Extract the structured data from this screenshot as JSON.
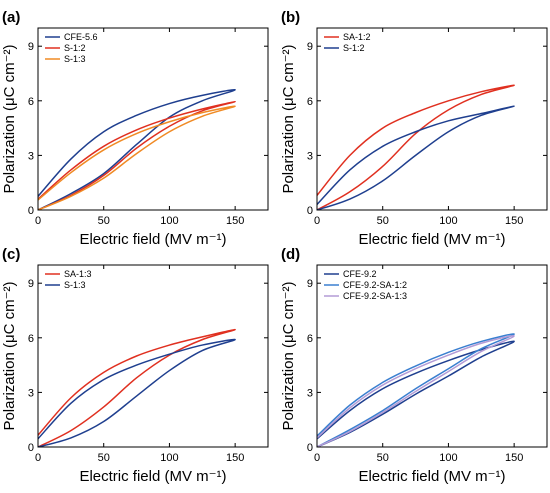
{
  "chart_data": [
    {
      "panel_label": "(a)",
      "type": "line",
      "xlabel": "Electric field (MV m⁻¹)",
      "ylabel": "Polarization (μC cm⁻²)",
      "xlim": [
        0,
        175
      ],
      "ylim": [
        0,
        10
      ],
      "xticks": [
        0,
        50,
        100,
        150
      ],
      "yticks": [
        0,
        3,
        6,
        9
      ],
      "legend_position": "top-left",
      "series": [
        {
          "name": "CFE-5.6",
          "color": "#1f3f8f",
          "x_max": 150,
          "p_max": 6.6,
          "p_rem": 0.75,
          "up": [
            [
              0,
              0
            ],
            [
              25,
              0.9
            ],
            [
              50,
              2.0
            ],
            [
              75,
              3.6
            ],
            [
              100,
              5.1
            ],
            [
              125,
              6.0
            ],
            [
              150,
              6.6
            ]
          ],
          "down": [
            [
              150,
              6.6
            ],
            [
              125,
              6.3
            ],
            [
              100,
              5.85
            ],
            [
              75,
              5.2
            ],
            [
              50,
              4.3
            ],
            [
              25,
              2.8
            ],
            [
              0,
              0.75
            ]
          ]
        },
        {
          "name": "S-1:2",
          "color": "#e03020",
          "x_max": 150,
          "p_max": 5.95,
          "p_rem": 0.6,
          "up": [
            [
              0,
              0
            ],
            [
              25,
              0.8
            ],
            [
              50,
              1.9
            ],
            [
              75,
              3.4
            ],
            [
              100,
              4.6
            ],
            [
              125,
              5.45
            ],
            [
              150,
              5.95
            ]
          ],
          "down": [
            [
              150,
              5.95
            ],
            [
              125,
              5.55
            ],
            [
              100,
              5.05
            ],
            [
              75,
              4.4
            ],
            [
              50,
              3.5
            ],
            [
              25,
              2.2
            ],
            [
              0,
              0.6
            ]
          ]
        },
        {
          "name": "S-1:3",
          "color": "#f08a24",
          "x_max": 150,
          "p_max": 5.7,
          "p_rem": 0.55,
          "up": [
            [
              0,
              0
            ],
            [
              25,
              0.75
            ],
            [
              50,
              1.75
            ],
            [
              75,
              3.1
            ],
            [
              100,
              4.3
            ],
            [
              125,
              5.15
            ],
            [
              150,
              5.7
            ]
          ],
          "down": [
            [
              150,
              5.7
            ],
            [
              125,
              5.35
            ],
            [
              100,
              4.85
            ],
            [
              75,
              4.2
            ],
            [
              50,
              3.3
            ],
            [
              25,
              2.05
            ],
            [
              0,
              0.55
            ]
          ]
        }
      ]
    },
    {
      "panel_label": "(b)",
      "type": "line",
      "xlabel": "Electric field (MV m⁻¹)",
      "ylabel": "Polarization (μC cm⁻²)",
      "xlim": [
        0,
        175
      ],
      "ylim": [
        0,
        10
      ],
      "xticks": [
        0,
        50,
        100,
        150
      ],
      "yticks": [
        0,
        3,
        6,
        9
      ],
      "legend_position": "top-left",
      "series": [
        {
          "name": "SA-1:2",
          "color": "#e03020",
          "x_max": 150,
          "p_max": 6.85,
          "p_rem": 0.8,
          "up": [
            [
              0,
              0
            ],
            [
              25,
              1.0
            ],
            [
              50,
              2.4
            ],
            [
              75,
              4.2
            ],
            [
              100,
              5.5
            ],
            [
              125,
              6.35
            ],
            [
              150,
              6.85
            ]
          ],
          "down": [
            [
              150,
              6.85
            ],
            [
              125,
              6.5
            ],
            [
              100,
              6.0
            ],
            [
              75,
              5.35
            ],
            [
              50,
              4.5
            ],
            [
              25,
              3.0
            ],
            [
              0,
              0.8
            ]
          ]
        },
        {
          "name": "S-1:2",
          "color": "#1f3f8f",
          "x_max": 150,
          "p_max": 5.7,
          "p_rem": 0.3,
          "up": [
            [
              0,
              0
            ],
            [
              25,
              0.6
            ],
            [
              50,
              1.6
            ],
            [
              75,
              3.0
            ],
            [
              100,
              4.3
            ],
            [
              125,
              5.2
            ],
            [
              150,
              5.7
            ]
          ],
          "down": [
            [
              150,
              5.7
            ],
            [
              125,
              5.3
            ],
            [
              100,
              4.9
            ],
            [
              75,
              4.3
            ],
            [
              50,
              3.5
            ],
            [
              25,
              2.2
            ],
            [
              0,
              0.3
            ]
          ]
        }
      ]
    },
    {
      "panel_label": "(c)",
      "type": "line",
      "xlabel": "Electric field (MV m⁻¹)",
      "ylabel": "Polarization (μC cm⁻²)",
      "xlim": [
        0,
        175
      ],
      "ylim": [
        0,
        10
      ],
      "xticks": [
        0,
        50,
        100,
        150
      ],
      "yticks": [
        0,
        3,
        6,
        9
      ],
      "legend_position": "top-left",
      "series": [
        {
          "name": "SA-1:3",
          "color": "#e03020",
          "x_max": 150,
          "p_max": 6.45,
          "p_rem": 0.65,
          "up": [
            [
              0,
              0
            ],
            [
              25,
              0.9
            ],
            [
              50,
              2.2
            ],
            [
              75,
              3.8
            ],
            [
              100,
              5.05
            ],
            [
              125,
              5.9
            ],
            [
              150,
              6.45
            ]
          ],
          "down": [
            [
              150,
              6.45
            ],
            [
              125,
              6.05
            ],
            [
              100,
              5.6
            ],
            [
              75,
              5.0
            ],
            [
              50,
              4.1
            ],
            [
              25,
              2.7
            ],
            [
              0,
              0.65
            ]
          ]
        },
        {
          "name": "S-1:3",
          "color": "#1f3f8f",
          "x_max": 150,
          "p_max": 5.9,
          "p_rem": 0.45,
          "up": [
            [
              0,
              0
            ],
            [
              25,
              0.5
            ],
            [
              50,
              1.4
            ],
            [
              75,
              2.8
            ],
            [
              100,
              4.2
            ],
            [
              125,
              5.3
            ],
            [
              150,
              5.9
            ]
          ],
          "down": [
            [
              150,
              5.9
            ],
            [
              125,
              5.6
            ],
            [
              100,
              5.1
            ],
            [
              75,
              4.5
            ],
            [
              50,
              3.7
            ],
            [
              25,
              2.4
            ],
            [
              0,
              0.45
            ]
          ]
        }
      ]
    },
    {
      "panel_label": "(d)",
      "type": "line",
      "xlabel": "Electric field (MV m⁻¹)",
      "ylabel": "Polarization (μC cm⁻²)",
      "xlim": [
        0,
        175
      ],
      "ylim": [
        0,
        10
      ],
      "xticks": [
        0,
        50,
        100,
        150
      ],
      "yticks": [
        0,
        3,
        6,
        9
      ],
      "legend_position": "top-left",
      "series": [
        {
          "name": "CFE-9.2",
          "color": "#1f3f8f",
          "x_max": 150,
          "p_max": 5.8,
          "p_rem": 0.45,
          "up": [
            [
              0,
              0
            ],
            [
              25,
              0.8
            ],
            [
              50,
              1.8
            ],
            [
              75,
              2.9
            ],
            [
              100,
              3.9
            ],
            [
              125,
              4.95
            ],
            [
              150,
              5.8
            ]
          ],
          "down": [
            [
              150,
              5.8
            ],
            [
              125,
              5.35
            ],
            [
              100,
              4.75
            ],
            [
              75,
              4.05
            ],
            [
              50,
              3.2
            ],
            [
              25,
              2.0
            ],
            [
              0,
              0.45
            ]
          ]
        },
        {
          "name": "CFE-9.2-SA-1:2",
          "color": "#3a7fd0",
          "x_max": 150,
          "p_max": 6.2,
          "p_rem": 0.6,
          "up": [
            [
              0,
              0
            ],
            [
              25,
              0.95
            ],
            [
              50,
              2.0
            ],
            [
              75,
              3.2
            ],
            [
              100,
              4.3
            ],
            [
              125,
              5.4
            ],
            [
              150,
              6.2
            ]
          ],
          "down": [
            [
              150,
              6.2
            ],
            [
              125,
              5.8
            ],
            [
              100,
              5.2
            ],
            [
              75,
              4.45
            ],
            [
              50,
              3.55
            ],
            [
              25,
              2.3
            ],
            [
              0,
              0.6
            ]
          ]
        },
        {
          "name": "CFE-9.2-SA-1:3",
          "color": "#b39bd6",
          "x_max": 150,
          "p_max": 6.1,
          "p_rem": 0.5,
          "up": [
            [
              0,
              0
            ],
            [
              25,
              0.85
            ],
            [
              50,
              1.9
            ],
            [
              75,
              3.05
            ],
            [
              100,
              4.15
            ],
            [
              125,
              5.25
            ],
            [
              150,
              6.1
            ]
          ],
          "down": [
            [
              150,
              6.1
            ],
            [
              125,
              5.7
            ],
            [
              100,
              5.05
            ],
            [
              75,
              4.3
            ],
            [
              50,
              3.4
            ],
            [
              25,
              2.15
            ],
            [
              0,
              0.5
            ]
          ]
        }
      ]
    }
  ]
}
